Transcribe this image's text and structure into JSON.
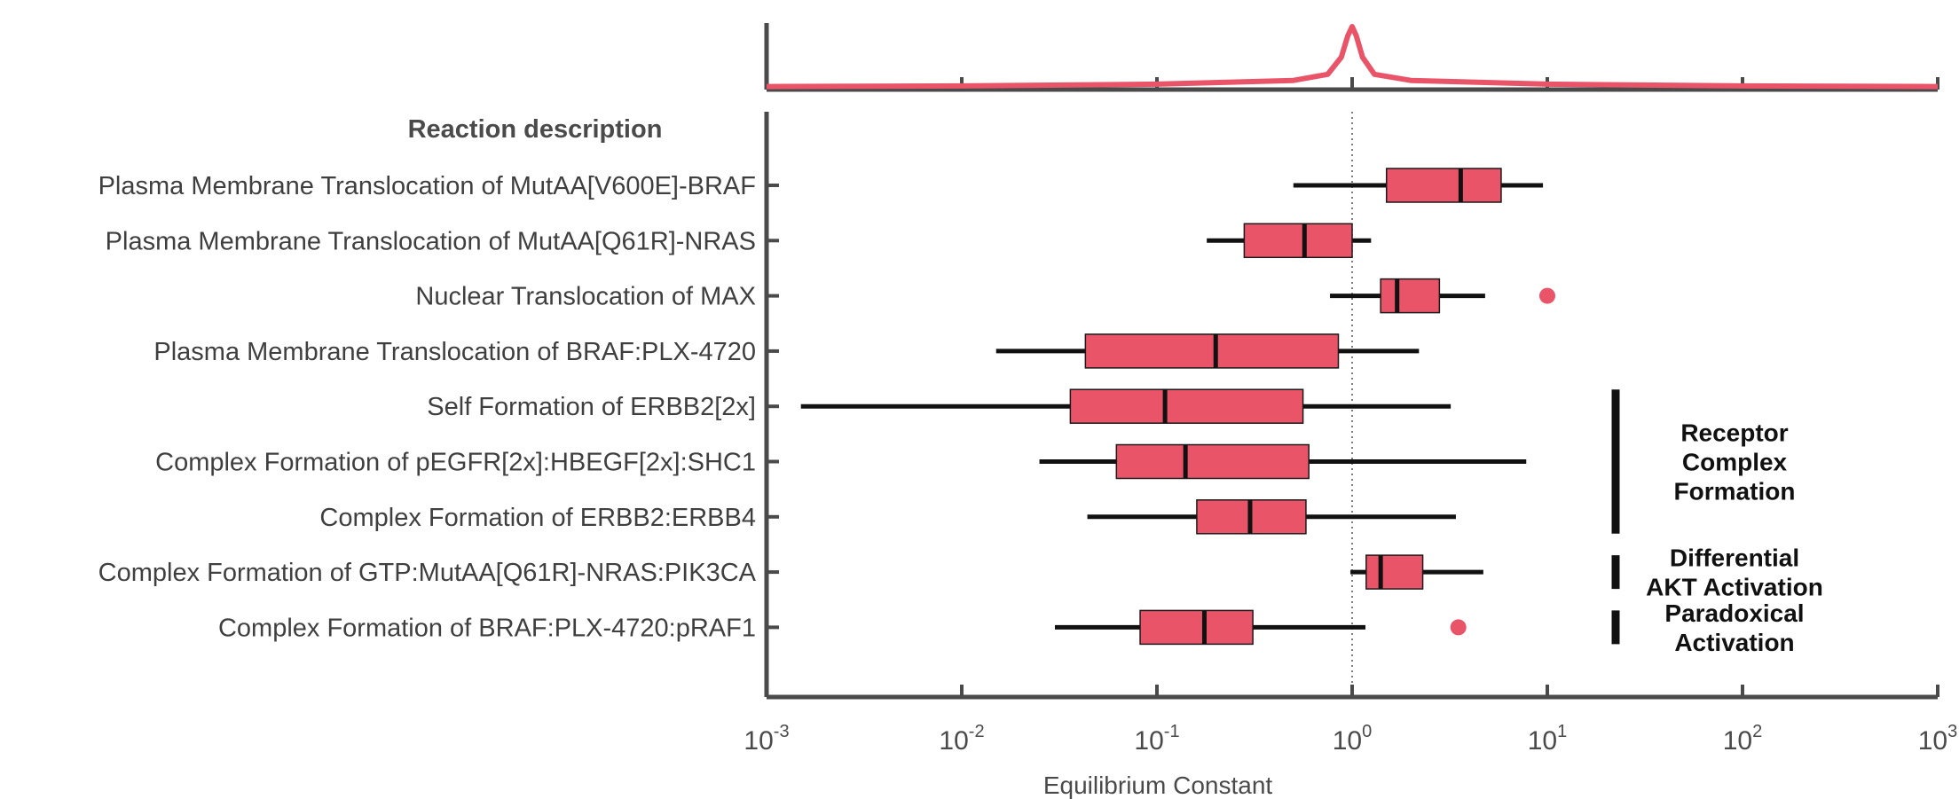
{
  "chart_data": {
    "type": "boxplot",
    "orientation": "horizontal",
    "x_scale": "log",
    "xlim": [
      0.001,
      1000
    ],
    "xlabel": "Equilibrium Constant",
    "x_ticks": [
      {
        "base": "10",
        "exp": "-3",
        "value": 0.001
      },
      {
        "base": "10",
        "exp": "-2",
        "value": 0.01
      },
      {
        "base": "10",
        "exp": "-1",
        "value": 0.1
      },
      {
        "base": "10",
        "exp": "0",
        "value": 1
      },
      {
        "base": "10",
        "exp": "1",
        "value": 10
      },
      {
        "base": "10",
        "exp": "2",
        "value": 100
      },
      {
        "base": "10",
        "exp": "3",
        "value": 1000
      }
    ],
    "reference_line": 1,
    "column_header": "Reaction description",
    "color": "#e95468",
    "rows": [
      {
        "label": "Plasma Membrane Translocation of MutAA[V600E]-BRAF",
        "whisker_low": 0.5,
        "q1": 1.5,
        "median": 3.6,
        "q3": 5.8,
        "whisker_high": 9.5,
        "outliers": []
      },
      {
        "label": "Plasma Membrane Translocation of MutAA[Q61R]-NRAS",
        "whisker_low": 0.18,
        "q1": 0.28,
        "median": 0.57,
        "q3": 1.0,
        "whisker_high": 1.25,
        "outliers": []
      },
      {
        "label": "Nuclear Translocation of MAX",
        "whisker_low": 0.77,
        "q1": 1.4,
        "median": 1.7,
        "q3": 2.8,
        "whisker_high": 4.8,
        "outliers": [
          10
        ]
      },
      {
        "label": "Plasma Membrane Translocation of BRAF:PLX-4720",
        "whisker_low": 0.015,
        "q1": 0.043,
        "median": 0.2,
        "q3": 0.85,
        "whisker_high": 2.2,
        "outliers": []
      },
      {
        "label": "Self Formation of ERBB2[2x]",
        "whisker_low": 0.0015,
        "q1": 0.036,
        "median": 0.11,
        "q3": 0.56,
        "whisker_high": 3.2,
        "outliers": []
      },
      {
        "label": "Complex Formation of pEGFR[2x]:HBEGF[2x]:SHC1",
        "whisker_low": 0.025,
        "q1": 0.062,
        "median": 0.14,
        "q3": 0.6,
        "whisker_high": 7.8,
        "outliers": []
      },
      {
        "label": "Complex Formation of ERBB2:ERBB4",
        "whisker_low": 0.044,
        "q1": 0.16,
        "median": 0.3,
        "q3": 0.58,
        "whisker_high": 3.4,
        "outliers": []
      },
      {
        "label": "Complex Formation of GTP:MutAA[Q61R]-NRAS:PIK3CA",
        "whisker_low": 0.98,
        "q1": 1.18,
        "median": 1.4,
        "q3": 2.3,
        "whisker_high": 4.7,
        "outliers": []
      },
      {
        "label": "Complex Formation of BRAF:PLX-4720:pRAF1",
        "whisker_low": 0.03,
        "q1": 0.082,
        "median": 0.175,
        "q3": 0.31,
        "whisker_high": 1.17,
        "outliers": [
          3.5
        ]
      }
    ],
    "groups": [
      {
        "lines": [
          "Receptor",
          "Complex",
          "Formation"
        ],
        "first_row": 4,
        "last_row": 6
      },
      {
        "lines": [
          "Differential",
          "AKT Activation"
        ],
        "first_row": 7,
        "last_row": 7
      },
      {
        "lines": [
          "Paradoxical",
          "Activation"
        ],
        "first_row": 8,
        "last_row": 8
      }
    ],
    "marginal_density": {
      "x": [
        0.001,
        0.01,
        0.1,
        0.5,
        0.75,
        0.88,
        0.95,
        1.0,
        1.05,
        1.13,
        1.3,
        2,
        10,
        100,
        1000
      ],
      "y": [
        0.02,
        0.03,
        0.06,
        0.12,
        0.22,
        0.5,
        0.85,
        1.0,
        0.85,
        0.5,
        0.22,
        0.12,
        0.06,
        0.03,
        0.02
      ]
    },
    "grid": false,
    "legend": "none"
  }
}
